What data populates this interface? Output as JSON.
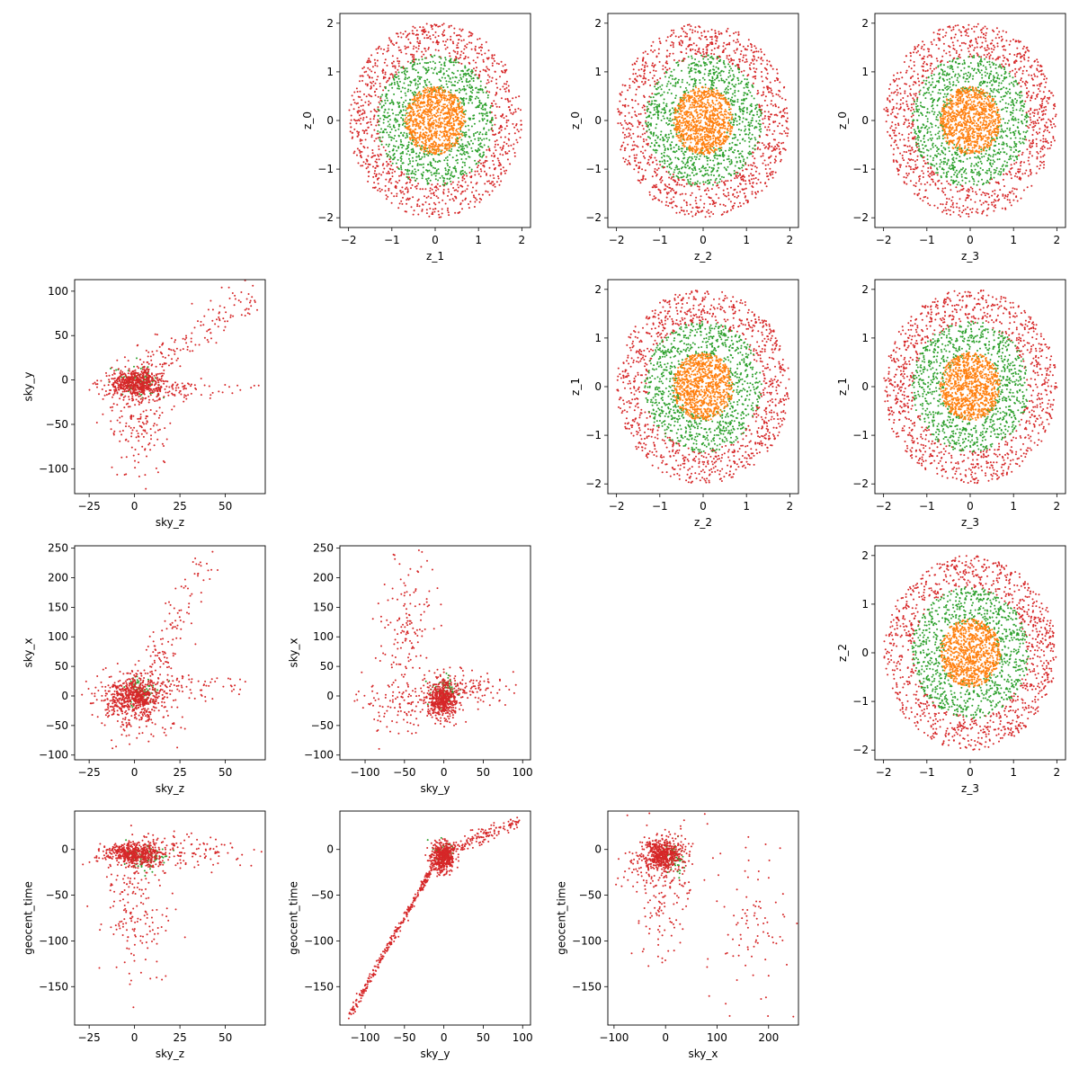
{
  "colors": {
    "orange": "#ff7f0e",
    "green": "#2ca02c",
    "red": "#d62728"
  },
  "chart_data": [
    {
      "type": "scatter",
      "xlabel": "z_1",
      "ylabel": "z_0",
      "xlim": [
        -2.2,
        2.2
      ],
      "ylim": [
        -2.2,
        2.2
      ],
      "xticks": [
        -2,
        -1,
        0,
        1,
        2
      ],
      "yticks": [
        -2,
        -1,
        0,
        1,
        2
      ],
      "generator": "ring",
      "series": [
        {
          "color": "#d62728",
          "count": 1000,
          "r_min": 1.3,
          "r_max": 2.0
        },
        {
          "color": "#2ca02c",
          "count": 900,
          "r_min": 0.6,
          "r_max": 1.35
        },
        {
          "color": "#ff7f0e",
          "count": 900,
          "r_min": 0.0,
          "r_max": 0.7
        }
      ]
    },
    {
      "type": "scatter",
      "xlabel": "z_2",
      "ylabel": "z_0",
      "xlim": [
        -2.2,
        2.2
      ],
      "ylim": [
        -2.2,
        2.2
      ],
      "xticks": [
        -2,
        -1,
        0,
        1,
        2
      ],
      "yticks": [
        -2,
        -1,
        0,
        1,
        2
      ],
      "generator": "ring",
      "series": [
        {
          "color": "#d62728",
          "count": 1000,
          "r_min": 1.3,
          "r_max": 2.0
        },
        {
          "color": "#2ca02c",
          "count": 900,
          "r_min": 0.6,
          "r_max": 1.35
        },
        {
          "color": "#ff7f0e",
          "count": 900,
          "r_min": 0.0,
          "r_max": 0.7
        }
      ]
    },
    {
      "type": "scatter",
      "xlabel": "z_3",
      "ylabel": "z_0",
      "xlim": [
        -2.2,
        2.2
      ],
      "ylim": [
        -2.2,
        2.2
      ],
      "xticks": [
        -2,
        -1,
        0,
        1,
        2
      ],
      "yticks": [
        -2,
        -1,
        0,
        1,
        2
      ],
      "generator": "ring",
      "series": [
        {
          "color": "#d62728",
          "count": 1000,
          "r_min": 1.3,
          "r_max": 2.0
        },
        {
          "color": "#2ca02c",
          "count": 900,
          "r_min": 0.6,
          "r_max": 1.35
        },
        {
          "color": "#ff7f0e",
          "count": 900,
          "r_min": 0.0,
          "r_max": 0.7
        }
      ]
    },
    {
      "type": "scatter",
      "xlabel": "sky_z",
      "ylabel": "sky_y",
      "xlim": [
        -33,
        72
      ],
      "ylim": [
        -128,
        113
      ],
      "xticks": [
        -25,
        0,
        25,
        50
      ],
      "yticks": [
        -100,
        -50,
        0,
        50,
        100
      ],
      "generator": "sky",
      "series": [
        {
          "color": "#2ca02c",
          "count": 70,
          "cx": 2,
          "cy": 0,
          "sx": 6,
          "sy": 8
        },
        {
          "color": "#d62728",
          "count": 500,
          "cx": 0,
          "cy": -3,
          "sx": 7,
          "sy": 7
        },
        {
          "color": "#d62728",
          "count": 160,
          "type": "streak",
          "x0": 0,
          "y0": 0,
          "x1": 68,
          "y1": 100,
          "spread": 12
        },
        {
          "color": "#d62728",
          "count": 200,
          "cx": 2,
          "cy": -40,
          "sx": 8,
          "sy": 35
        },
        {
          "color": "#d62728",
          "count": 120,
          "cx": 15,
          "cy": -10,
          "sx": 18,
          "sy": 5
        }
      ]
    },
    {
      "type": "scatter",
      "xlabel": "z_2",
      "ylabel": "z_1",
      "xlim": [
        -2.2,
        2.2
      ],
      "ylim": [
        -2.2,
        2.2
      ],
      "xticks": [
        -2,
        -1,
        0,
        1,
        2
      ],
      "yticks": [
        -2,
        -1,
        0,
        1,
        2
      ],
      "generator": "ring",
      "series": [
        {
          "color": "#d62728",
          "count": 1000,
          "r_min": 1.3,
          "r_max": 2.0
        },
        {
          "color": "#2ca02c",
          "count": 900,
          "r_min": 0.6,
          "r_max": 1.35
        },
        {
          "color": "#ff7f0e",
          "count": 900,
          "r_min": 0.0,
          "r_max": 0.7
        }
      ]
    },
    {
      "type": "scatter",
      "xlabel": "z_3",
      "ylabel": "z_1",
      "xlim": [
        -2.2,
        2.2
      ],
      "ylim": [
        -2.2,
        2.2
      ],
      "xticks": [
        -2,
        -1,
        0,
        1,
        2
      ],
      "yticks": [
        -2,
        -1,
        0,
        1,
        2
      ],
      "generator": "ring",
      "series": [
        {
          "color": "#d62728",
          "count": 1000,
          "r_min": 1.3,
          "r_max": 2.0
        },
        {
          "color": "#2ca02c",
          "count": 900,
          "r_min": 0.6,
          "r_max": 1.35
        },
        {
          "color": "#ff7f0e",
          "count": 900,
          "r_min": 0.0,
          "r_max": 0.7
        }
      ]
    },
    {
      "type": "scatter",
      "xlabel": "sky_z",
      "ylabel": "sky_x",
      "xlim": [
        -33,
        72
      ],
      "ylim": [
        -108,
        254
      ],
      "xticks": [
        -25,
        0,
        25,
        50
      ],
      "yticks": [
        -100,
        -50,
        0,
        50,
        100,
        150,
        200,
        250
      ],
      "generator": "sky",
      "series": [
        {
          "color": "#2ca02c",
          "count": 70,
          "cx": 3,
          "cy": 5,
          "sx": 5,
          "sy": 12
        },
        {
          "color": "#d62728",
          "count": 500,
          "cx": 0,
          "cy": -3,
          "sx": 8,
          "sy": 15
        },
        {
          "color": "#d62728",
          "count": 130,
          "type": "streak",
          "x0": 5,
          "y0": 20,
          "x1": 38,
          "y1": 235,
          "spread": 15
        },
        {
          "color": "#d62728",
          "count": 160,
          "cx": 0,
          "cy": -20,
          "sx": 12,
          "sy": 30
        },
        {
          "color": "#d62728",
          "count": 110,
          "cx": 20,
          "cy": 15,
          "sx": 20,
          "sy": 12
        }
      ]
    },
    {
      "type": "scatter",
      "xlabel": "sky_y",
      "ylabel": "sky_x",
      "xlim": [
        -132,
        110
      ],
      "ylim": [
        -108,
        254
      ],
      "xticks": [
        -100,
        -50,
        0,
        50,
        100
      ],
      "yticks": [
        -100,
        -50,
        0,
        50,
        100,
        150,
        200,
        250
      ],
      "generator": "sky",
      "series": [
        {
          "color": "#2ca02c",
          "count": 70,
          "cx": 2,
          "cy": 8,
          "sx": 8,
          "sy": 12
        },
        {
          "color": "#d62728",
          "count": 500,
          "cx": -2,
          "cy": -5,
          "sx": 10,
          "sy": 15
        },
        {
          "color": "#d62728",
          "count": 160,
          "cx": -45,
          "cy": 110,
          "sx": 18,
          "sy": 70
        },
        {
          "color": "#d62728",
          "count": 110,
          "cx": 35,
          "cy": 15,
          "sx": 25,
          "sy": 12
        },
        {
          "color": "#d62728",
          "count": 100,
          "cx": -60,
          "cy": -15,
          "sx": 30,
          "sy": 25
        }
      ]
    },
    {
      "type": "scatter",
      "xlabel": "z_3",
      "ylabel": "z_2",
      "xlim": [
        -2.2,
        2.2
      ],
      "ylim": [
        -2.2,
        2.2
      ],
      "xticks": [
        -2,
        -1,
        0,
        1,
        2
      ],
      "yticks": [
        -2,
        -1,
        0,
        1,
        2
      ],
      "generator": "ring",
      "series": [
        {
          "color": "#d62728",
          "count": 1000,
          "r_min": 1.3,
          "r_max": 2.0
        },
        {
          "color": "#2ca02c",
          "count": 900,
          "r_min": 0.6,
          "r_max": 1.35
        },
        {
          "color": "#ff7f0e",
          "count": 900,
          "r_min": 0.0,
          "r_max": 0.7
        }
      ]
    },
    {
      "type": "scatter",
      "xlabel": "sky_z",
      "ylabel": "geocent_time",
      "xlim": [
        -33,
        72
      ],
      "ylim": [
        -192,
        42
      ],
      "xticks": [
        -25,
        0,
        25,
        50
      ],
      "yticks": [
        -150,
        -100,
        -50,
        0
      ],
      "generator": "sky",
      "series": [
        {
          "color": "#2ca02c",
          "count": 70,
          "cx": 5,
          "cy": -8,
          "sx": 6,
          "sy": 8
        },
        {
          "color": "#d62728",
          "count": 500,
          "cx": 0,
          "cy": -4,
          "sx": 8,
          "sy": 6
        },
        {
          "color": "#d62728",
          "count": 160,
          "cx": 20,
          "cy": -5,
          "sx": 22,
          "sy": 10
        },
        {
          "color": "#d62728",
          "count": 180,
          "cx": 0,
          "cy": -70,
          "sx": 9,
          "sy": 40
        }
      ]
    },
    {
      "type": "scatter",
      "xlabel": "sky_y",
      "ylabel": "geocent_time",
      "xlim": [
        -132,
        110
      ],
      "ylim": [
        -192,
        42
      ],
      "xticks": [
        -100,
        -50,
        0,
        50,
        100
      ],
      "yticks": [
        -150,
        -100,
        -50,
        0
      ],
      "generator": "sky",
      "series": [
        {
          "color": "#2ca02c",
          "count": 60,
          "cx": 0,
          "cy": -3,
          "sx": 6,
          "sy": 5
        },
        {
          "color": "#d62728",
          "count": 450,
          "cx": -2,
          "cy": -8,
          "sx": 7,
          "sy": 8
        },
        {
          "color": "#d62728",
          "count": 320,
          "type": "streak",
          "x0": -5,
          "y0": -5,
          "x1": -120,
          "y1": -182,
          "spread": 3
        },
        {
          "color": "#d62728",
          "count": 160,
          "type": "streak",
          "x0": 5,
          "y0": 0,
          "x1": 95,
          "y1": 30,
          "spread": 4
        }
      ]
    },
    {
      "type": "scatter",
      "xlabel": "sky_x",
      "ylabel": "geocent_time",
      "xlim": [
        -112,
        258
      ],
      "ylim": [
        -192,
        42
      ],
      "xticks": [
        -100,
        0,
        100,
        200
      ],
      "yticks": [
        -150,
        -100,
        -50,
        0
      ],
      "generator": "sky",
      "series": [
        {
          "color": "#2ca02c",
          "count": 60,
          "cx": 15,
          "cy": -8,
          "sx": 10,
          "sy": 10
        },
        {
          "color": "#d62728",
          "count": 500,
          "cx": -5,
          "cy": -5,
          "sx": 18,
          "sy": 8
        },
        {
          "color": "#d62728",
          "count": 180,
          "cx": 0,
          "cy": -40,
          "sx": 25,
          "sy": 45
        },
        {
          "color": "#d62728",
          "count": 90,
          "cx": 170,
          "cy": -80,
          "sx": 45,
          "sy": 45
        },
        {
          "color": "#d62728",
          "count": 60,
          "cx": -50,
          "cy": -20,
          "sx": 25,
          "sy": 10
        }
      ]
    }
  ]
}
